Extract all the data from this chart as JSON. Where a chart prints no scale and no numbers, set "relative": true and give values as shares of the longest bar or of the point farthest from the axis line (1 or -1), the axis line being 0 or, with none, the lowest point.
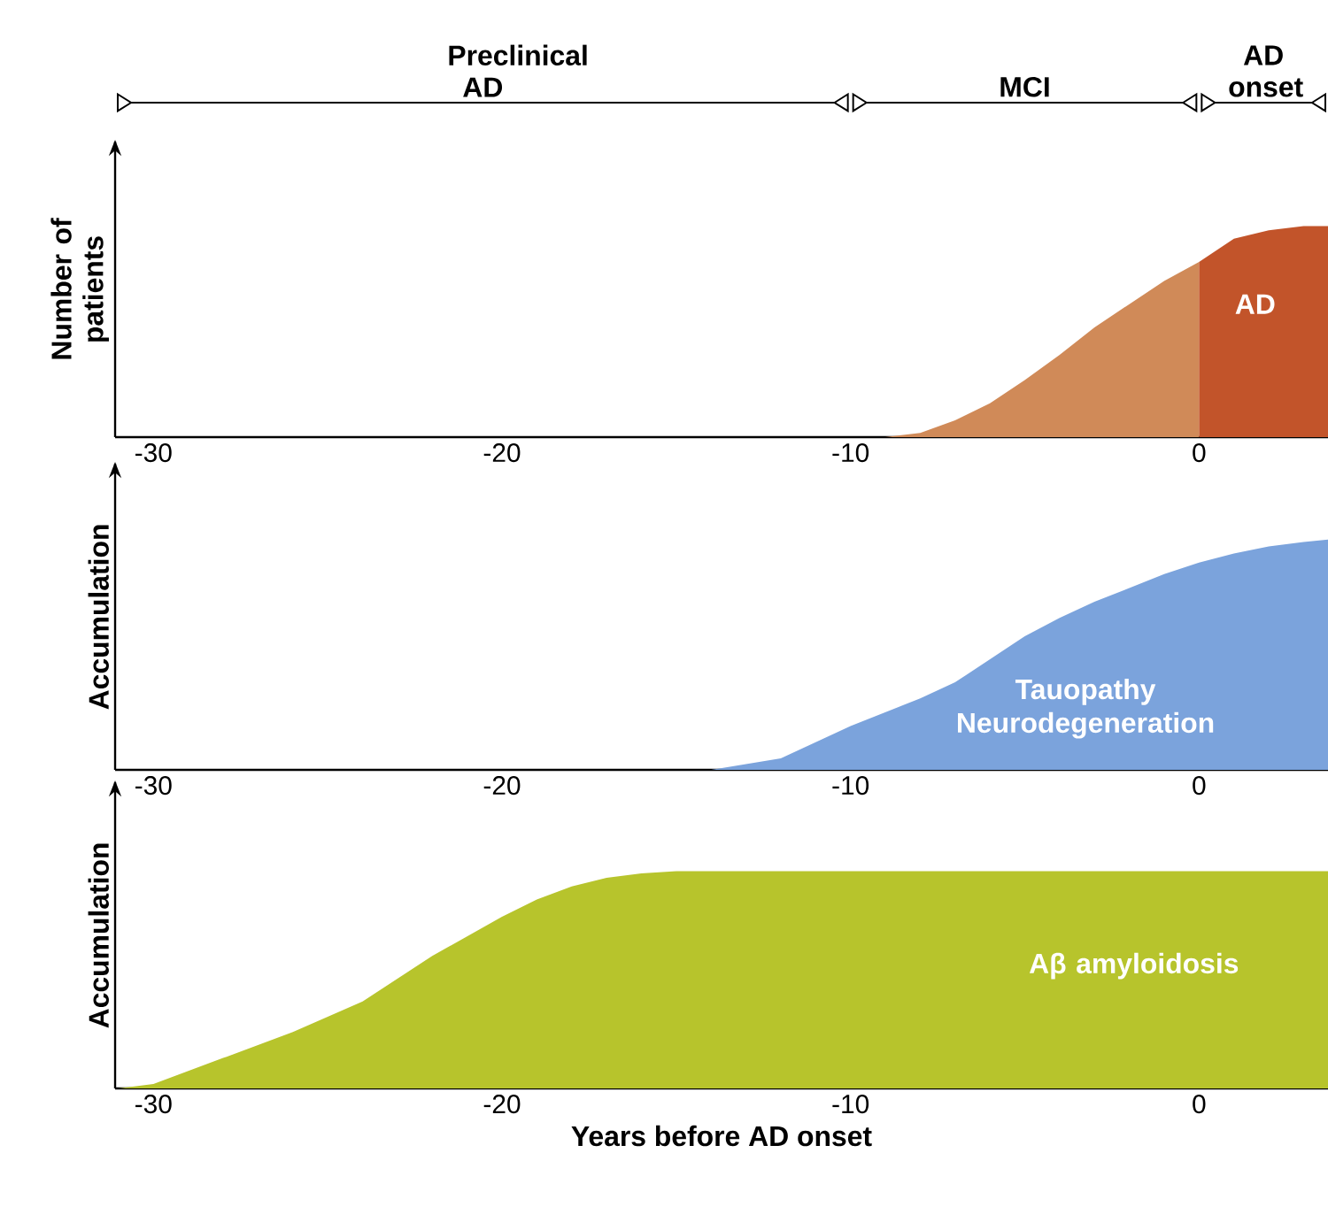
{
  "chart_data": [
    {
      "type": "area",
      "relative": true,
      "ylabel": "Number of patients",
      "xlim": [
        -31.1,
        3.7
      ],
      "xticks": [
        -30,
        -20,
        -10,
        0
      ],
      "tick_labels": "x",
      "annotations": [
        "Preclinical AD",
        "MCI",
        "AD onset"
      ],
      "series": [
        {
          "color": "#d08a58",
          "x": [
            -9,
            -8,
            -7,
            -6,
            -5,
            -4,
            -3,
            -2,
            -1,
            0
          ],
          "values": [
            0,
            0.02,
            0.08,
            0.16,
            0.27,
            0.39,
            0.52,
            0.63,
            0.74,
            0.83
          ]
        },
        {
          "name": "AD",
          "color": "#c2542a",
          "x": [
            0,
            1,
            2,
            3,
            3.7
          ],
          "values": [
            0.83,
            0.94,
            0.98,
            1,
            1
          ]
        }
      ]
    },
    {
      "type": "area",
      "relative": true,
      "ylabel": "Accumulation",
      "xlim": [
        -31.1,
        3.7
      ],
      "xticks": [
        -30,
        -20,
        -10,
        0
      ],
      "tick_labels": "x",
      "series": [
        {
          "name": "Tauopathy Neurodegeneration",
          "color": "#7ba3dc",
          "x": [
            -14,
            -12,
            -10,
            -8,
            -7,
            -6,
            -5,
            -4,
            -3,
            -2,
            -1,
            0,
            1,
            2,
            3,
            3.7
          ],
          "values": [
            0,
            0.05,
            0.19,
            0.31,
            0.38,
            0.48,
            0.58,
            0.66,
            0.73,
            0.79,
            0.85,
            0.9,
            0.94,
            0.97,
            0.99,
            1
          ]
        }
      ]
    },
    {
      "type": "area",
      "relative": true,
      "ylabel": "Accumulation",
      "xlabel": "Years before AD onset",
      "xlim": [
        -31.1,
        3.7
      ],
      "xticks": [
        -30,
        -20,
        -10,
        0
      ],
      "tick_labels": "x",
      "series": [
        {
          "name": "Aβ amyloidosis",
          "color": "#b7c42c",
          "x": [
            -31,
            -30,
            -28,
            -26,
            -25,
            -24,
            -22,
            -20,
            -19,
            -18,
            -17,
            -16,
            -15,
            -10,
            0,
            3.7
          ],
          "values": [
            0,
            0.02,
            0.14,
            0.26,
            0.33,
            0.4,
            0.61,
            0.79,
            0.87,
            0.93,
            0.97,
            0.99,
            1,
            1,
            1,
            1
          ]
        }
      ]
    }
  ]
}
